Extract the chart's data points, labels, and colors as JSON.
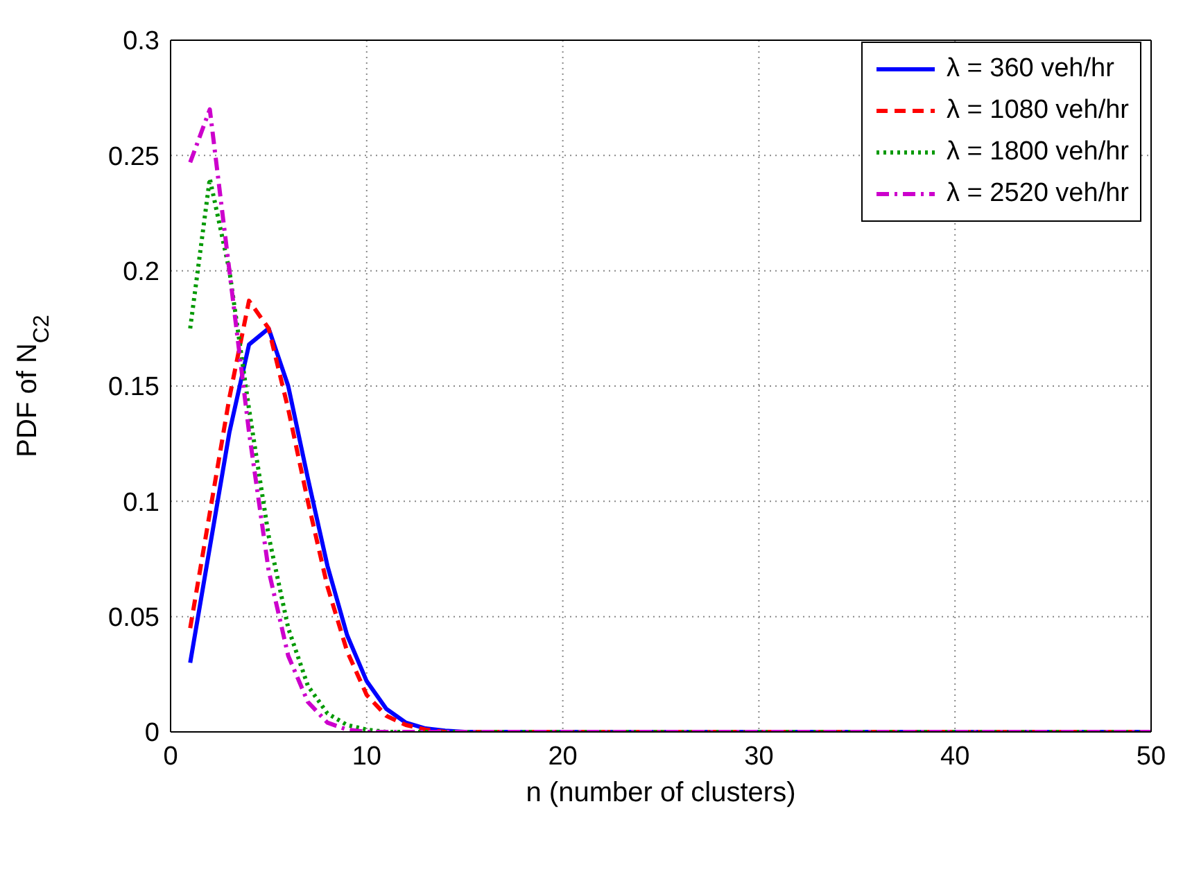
{
  "chart_data": {
    "type": "line",
    "xlabel": "n (number of clusters)",
    "ylabel": "PDF of N$_{C2}$",
    "xlim": [
      0,
      50
    ],
    "xticks": [
      0,
      10,
      20,
      30,
      40,
      50
    ],
    "ylim": [
      0,
      0.3
    ],
    "yticks": [
      0,
      0.05,
      0.1,
      0.15,
      0.2,
      0.25,
      0.3
    ],
    "grid": true,
    "legend": "top right",
    "marker": "none",
    "series": [
      {
        "name": "λ = 360 veh/hr",
        "color": "#0000ff",
        "line_style": "solid",
        "x": [
          1,
          2,
          3,
          4,
          5,
          6,
          7,
          8,
          9,
          10,
          11,
          12,
          13,
          14,
          15,
          50
        ],
        "values": [
          0.03,
          0.08,
          0.13,
          0.168,
          0.175,
          0.15,
          0.11,
          0.072,
          0.042,
          0.022,
          0.01,
          0.004,
          0.0015,
          0.0005,
          0,
          0
        ]
      },
      {
        "name": "λ = 1080 veh/hr",
        "color": "#ff0000",
        "line_style": "dashed",
        "x": [
          1,
          2,
          3,
          4,
          5,
          6,
          7,
          8,
          9,
          10,
          11,
          12,
          13,
          14,
          50
        ],
        "values": [
          0.045,
          0.095,
          0.145,
          0.187,
          0.175,
          0.14,
          0.1,
          0.063,
          0.035,
          0.016,
          0.007,
          0.003,
          0.001,
          0,
          0
        ]
      },
      {
        "name": "λ = 1800 veh/hr",
        "color": "#009900",
        "line_style": "dotted",
        "x": [
          1,
          2,
          3,
          4,
          5,
          6,
          7,
          8,
          9,
          10,
          11,
          50
        ],
        "values": [
          0.175,
          0.24,
          0.2,
          0.14,
          0.085,
          0.045,
          0.02,
          0.008,
          0.003,
          0.001,
          0,
          0
        ]
      },
      {
        "name": "λ = 2520 veh/hr",
        "color": "#cc00cc",
        "line_style": "dashdot",
        "x": [
          1,
          2,
          3,
          4,
          5,
          6,
          7,
          8,
          9,
          10,
          50
        ],
        "values": [
          0.247,
          0.27,
          0.2,
          0.13,
          0.07,
          0.033,
          0.013,
          0.004,
          0.001,
          0,
          0
        ]
      }
    ]
  }
}
